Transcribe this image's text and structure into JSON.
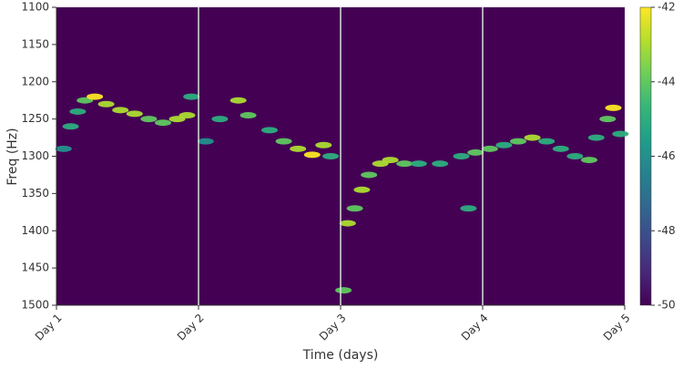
{
  "chart_data": {
    "type": "heatmap",
    "xlabel": "Time (days)",
    "ylabel": "Freq (Hz)",
    "xlim": [
      0,
      4
    ],
    "xticks": [
      {
        "value": 0,
        "label": "Day 1"
      },
      {
        "value": 1,
        "label": "Day 2"
      },
      {
        "value": 2,
        "label": "Day 3"
      },
      {
        "value": 3,
        "label": "Day 4"
      },
      {
        "value": 4,
        "label": "Day 5"
      }
    ],
    "ylim": [
      1500,
      1100
    ],
    "yticks": [
      1100,
      1150,
      1200,
      1250,
      1300,
      1350,
      1400,
      1450,
      1500
    ],
    "clim": [
      -50,
      -42
    ],
    "cticks": [
      -42,
      -44,
      -46,
      -48,
      -50
    ],
    "colormap": [
      "#440154",
      "#482878",
      "#3e4989",
      "#31688e",
      "#26828e",
      "#1f9e89",
      "#35b779",
      "#6ece58",
      "#b5de2b",
      "#fde725"
    ],
    "x": [
      0.05,
      0.1,
      0.15,
      0.2,
      0.27,
      0.35,
      0.45,
      0.55,
      0.65,
      0.75,
      0.85,
      0.92,
      0.95,
      1.05,
      1.15,
      1.28,
      1.35,
      1.5,
      1.6,
      1.7,
      1.8,
      1.88,
      1.93,
      2.02,
      2.05,
      2.1,
      2.15,
      2.2,
      2.28,
      2.35,
      2.45,
      2.55,
      2.7,
      2.85,
      2.9,
      2.95,
      3.05,
      3.15,
      3.25,
      3.35,
      3.45,
      3.55,
      3.65,
      3.75,
      3.8,
      3.88,
      3.92,
      3.97
    ],
    "y": [
      1290,
      1260,
      1240,
      1225,
      1220,
      1230,
      1238,
      1243,
      1250,
      1255,
      1250,
      1245,
      1220,
      1280,
      1250,
      1225,
      1245,
      1265,
      1280,
      1290,
      1298,
      1285,
      1300,
      1480,
      1390,
      1370,
      1345,
      1325,
      1310,
      1305,
      1310,
      1310,
      1310,
      1300,
      1370,
      1295,
      1290,
      1285,
      1280,
      1275,
      1280,
      1290,
      1300,
      1305,
      1275,
      1250,
      1235,
      1270
    ],
    "values": [
      -46,
      -45,
      -45,
      -44,
      -42,
      -43,
      -43,
      -43,
      -44,
      -44,
      -43,
      -43,
      -45,
      -46,
      -45,
      -43,
      -44,
      -45,
      -44,
      -43,
      -42,
      -43,
      -45,
      -44,
      -43,
      -44,
      -43,
      -44,
      -43,
      -43,
      -44,
      -45,
      -45,
      -45,
      -45,
      -44,
      -44,
      -45,
      -44,
      -43,
      -45,
      -45,
      -45,
      -44,
      -45,
      -44,
      -42,
      -45
    ]
  }
}
